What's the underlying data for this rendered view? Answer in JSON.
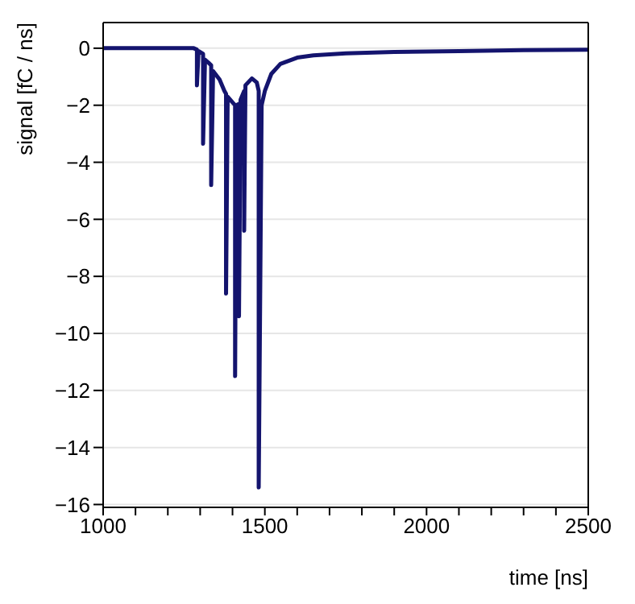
{
  "chart_data": {
    "type": "line",
    "xlabel": "time [ns]",
    "ylabel": "signal [fC / ns]",
    "xlim": [
      1000,
      2500
    ],
    "ylim": [
      -16.1,
      0.9
    ],
    "xticks": [
      1000,
      {
        "value": 1100,
        "label": null
      },
      {
        "value": 1200,
        "label": null
      },
      {
        "value": 1300,
        "label": null
      },
      {
        "value": 1400,
        "label": null
      },
      1500,
      {
        "value": 1600,
        "label": null
      },
      {
        "value": 1700,
        "label": null
      },
      {
        "value": 1800,
        "label": null
      },
      {
        "value": 1900,
        "label": null
      },
      2000,
      {
        "value": 2100,
        "label": null
      },
      {
        "value": 2200,
        "label": null
      },
      {
        "value": 2300,
        "label": null
      },
      {
        "value": 2400,
        "label": null
      },
      2500
    ],
    "yticks": [
      0,
      -2,
      -4,
      -6,
      -8,
      -10,
      -12,
      -14,
      -16
    ],
    "grid": "y",
    "marker": "none",
    "line_style": "solid",
    "series": [
      {
        "color": "#14146e",
        "x": [
          1000,
          1280,
          1290,
          1290,
          1295,
          1309,
          1309,
          1315,
          1325,
          1334,
          1334,
          1340,
          1360,
          1375,
          1380,
          1380,
          1385,
          1400,
          1408,
          1408,
          1412,
          1420,
          1420,
          1425,
          1436,
          1436,
          1440,
          1460,
          1475,
          1481,
          1481,
          1490,
          1500,
          1520,
          1548,
          1600,
          1650,
          1750,
          1900,
          2100,
          2300,
          2500
        ],
        "values": [
          0,
          0,
          -0.05,
          -1.3,
          -0.1,
          -0.2,
          -3.35,
          -0.4,
          -0.5,
          -0.6,
          -4.8,
          -0.8,
          -1.1,
          -1.5,
          -1.6,
          -8.6,
          -1.7,
          -1.9,
          -2.0,
          -11.5,
          -2.0,
          -1.95,
          -9.4,
          -1.8,
          -1.5,
          -6.4,
          -1.3,
          -1.06,
          -1.2,
          -1.5,
          -15.4,
          -2.0,
          -1.5,
          -0.9,
          -0.55,
          -0.33,
          -0.25,
          -0.18,
          -0.13,
          -0.1,
          -0.07,
          -0.05
        ]
      }
    ]
  }
}
